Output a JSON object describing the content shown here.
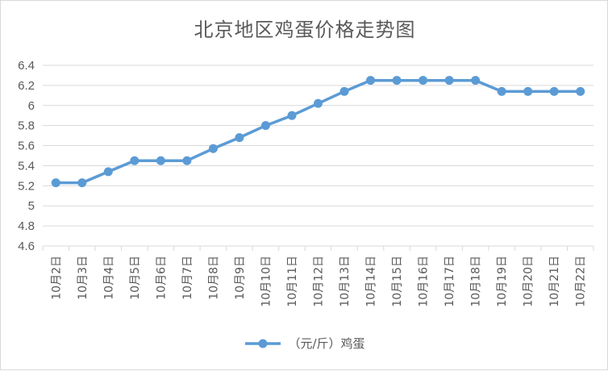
{
  "chart_data": {
    "type": "line",
    "title": "北京地区鸡蛋价格走势图",
    "xlabel": "",
    "ylabel": "",
    "categories": [
      "10月2日",
      "10月3日",
      "10月4日",
      "10月5日",
      "10月6日",
      "10月7日",
      "10月8日",
      "10月9日",
      "10月10日",
      "10月11日",
      "10月12日",
      "10月13日",
      "10月14日",
      "10月15日",
      "10月16日",
      "10月17日",
      "10月18日",
      "10月19日",
      "10月20日",
      "10月21日",
      "10月22日"
    ],
    "series": [
      {
        "name": "（元/斤）鸡蛋",
        "color": "#5b9bd5",
        "values": [
          5.23,
          5.23,
          5.34,
          5.45,
          5.45,
          5.45,
          5.57,
          5.68,
          5.8,
          5.9,
          6.02,
          6.14,
          6.25,
          6.25,
          6.25,
          6.25,
          6.25,
          6.14,
          6.14,
          6.14,
          6.14
        ]
      }
    ],
    "ylim": [
      4.6,
      6.4
    ],
    "yticks": [
      "4.6",
      "4.8",
      "5",
      "5.2",
      "5.4",
      "5.6",
      "5.8",
      "6",
      "6.2",
      "6.4"
    ],
    "grid": true,
    "legend_position": "bottom"
  },
  "colors": {
    "grid": "#d9d9d9",
    "text": "#595959",
    "series": "#5b9bd5"
  }
}
